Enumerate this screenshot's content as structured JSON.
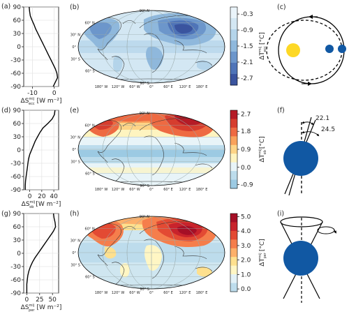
{
  "panels": {
    "a": "(a)",
    "b": "(b)",
    "c": "(c)",
    "d": "(d)",
    "e": "(e)",
    "f": "(f)",
    "g": "(g)",
    "h": "(h)",
    "i": "(i)"
  },
  "lat_ticks": [
    "90",
    "60",
    "30",
    "0",
    "-30",
    "-60",
    "-90"
  ],
  "profiles": [
    {
      "id": "ecc",
      "xticks": [
        "-10",
        "0"
      ],
      "xlabel_main": "ΔS",
      "xlabel_sup": "mij",
      "xlabel_sub": "ecc",
      "xlabel_unit": "[W m⁻²]",
      "profile_data": {
        "lat": [
          90,
          80,
          70,
          60,
          50,
          40,
          30,
          20,
          10,
          0,
          -10,
          -20,
          -30,
          -40,
          -50,
          -60,
          -70,
          -80,
          -90
        ],
        "value": [
          -11.5,
          -11.3,
          -11.0,
          -10.2,
          -9.3,
          -8.5,
          -7.5,
          -6.5,
          -5.5,
          -4.5,
          -3.5,
          -2.5,
          -1.5,
          -0.5,
          0.5,
          1.2,
          1.5,
          0.5,
          -0.5
        ],
        "xlim": [
          -14,
          2
        ]
      }
    },
    {
      "id": "ob",
      "xticks": [
        "0",
        "20",
        "40"
      ],
      "xlabel_main": "ΔS",
      "xlabel_sup": "mij",
      "xlabel_sub": "ob",
      "xlabel_unit": "[W m⁻²]",
      "profile_data": {
        "lat": [
          90,
          80,
          70,
          60,
          50,
          40,
          30,
          20,
          10,
          0,
          -10,
          -20,
          -30,
          -40,
          -50,
          -60,
          -70,
          -80,
          -90
        ],
        "value": [
          42,
          41,
          37,
          30,
          22,
          17,
          13,
          9,
          6,
          3,
          0,
          -2,
          -3,
          -4,
          -5,
          -6,
          -7,
          -7.5,
          -7.5
        ],
        "xlim": [
          -10,
          48
        ]
      }
    },
    {
      "id": "per",
      "xticks": [
        "0",
        "25",
        "50"
      ],
      "xlabel_main": "ΔS",
      "xlabel_sup": "mij",
      "xlabel_sub": "per",
      "xlabel_unit": "[W m⁻²]",
      "profile_data": {
        "lat": [
          90,
          80,
          70,
          60,
          50,
          40,
          30,
          20,
          10,
          0,
          -10,
          -20,
          -30,
          -40,
          -50,
          -60,
          -70,
          -80,
          -90
        ],
        "value": [
          52,
          53,
          55,
          56,
          52,
          46,
          40,
          34,
          28,
          22,
          16,
          11,
          7,
          4,
          2,
          1,
          0,
          0,
          0
        ],
        "xlim": [
          -6,
          62
        ]
      }
    }
  ],
  "maps": [
    {
      "id": "ecc",
      "lat_labels": [
        "90° N",
        "60° N",
        "30° N",
        "0°",
        "30° S",
        "60° S",
        "90° S"
      ],
      "lon_labels": [
        "180° W",
        "120° W",
        "60° W",
        "0°",
        "60° E",
        "120° E",
        "180° E"
      ],
      "colorbar": {
        "ticks": [
          "-0.3",
          "-0.9",
          "-1.5",
          "-2.1",
          "-2.7"
        ],
        "label_main": "ΔT",
        "label_sup": "mij",
        "label_sub": "ecc",
        "label_unit": "[°C]",
        "colors": [
          "#eaf4fa",
          "#d3e7f3",
          "#b4d4ea",
          "#8fb8dc",
          "#6c96cb",
          "#4f74b8",
          "#3a549f"
        ]
      }
    },
    {
      "id": "ob",
      "lat_labels": [
        "90° N",
        "60° N",
        "30° N",
        "0°",
        "30° S",
        "60° S",
        "90° S"
      ],
      "lon_labels": [
        "180° W",
        "120° W",
        "60° W",
        "0°",
        "60° E",
        "120° E",
        "180° E"
      ],
      "colorbar": {
        "ticks": [
          "2.7",
          "1.8",
          "0.9",
          "0.0",
          "-0.9"
        ],
        "label_main": "ΔT",
        "label_sup": "mij",
        "label_sub": "ob",
        "label_unit": "[°C]",
        "colors": [
          "#b51b26",
          "#d63d2e",
          "#ee6a42",
          "#f9a25b",
          "#fdd487",
          "#fef4c0",
          "#e8f4f8",
          "#bcdcec",
          "#9ccae3"
        ]
      }
    },
    {
      "id": "per",
      "lat_labels": [
        "90° N",
        "60° N",
        "30° N",
        "0°",
        "30° S",
        "60° S",
        "90° S"
      ],
      "lon_labels": [
        "180° W",
        "120° W",
        "60° W",
        "0°",
        "60° E",
        "120° E",
        "180° E"
      ],
      "colorbar": {
        "ticks": [
          "5.0",
          "4.0",
          "3.0",
          "2.0",
          "1.0",
          "0.0"
        ],
        "label_main": "ΔT",
        "label_sup": "mij",
        "label_sub": "per",
        "label_unit": "[°C]",
        "colors": [
          "#a50f26",
          "#c8232c",
          "#e34a33",
          "#f57e4c",
          "#fdb06a",
          "#fee08e",
          "#fff6c4",
          "#e2f1f7",
          "#bddcec"
        ]
      }
    }
  ],
  "diagrams": {
    "obliquity_angles": [
      "22.1",
      "24.5"
    ],
    "sun_color": "#fdd826",
    "earth_color": "#1158a3"
  }
}
